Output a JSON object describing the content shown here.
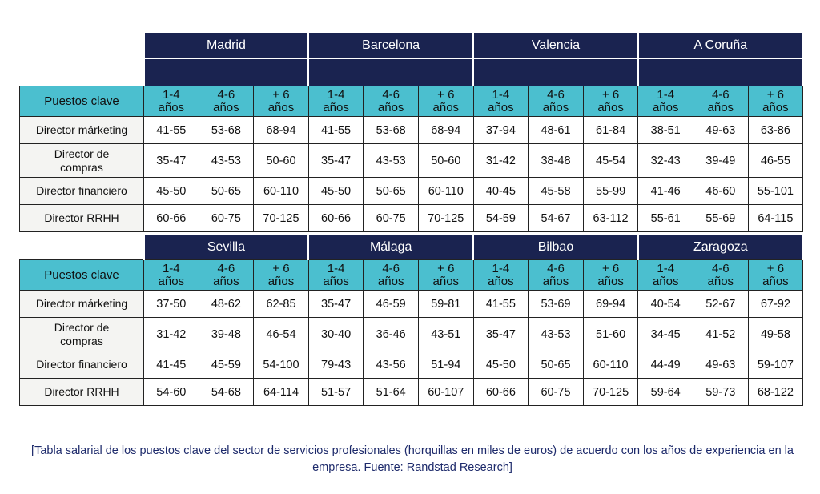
{
  "corner_label": "Puestos clave",
  "exp_headers": [
    "1-4\naños",
    "4-6\naños",
    "+ 6\naños"
  ],
  "roles": [
    "Director márketing",
    "Director de\ncompras",
    "Director financiero",
    "Director RRHH"
  ],
  "table1": {
    "cities": [
      "Madrid",
      "Barcelona",
      "Valencia",
      "A Coruña"
    ],
    "rows": [
      [
        "41-55",
        "53-68",
        "68-94",
        "41-55",
        "53-68",
        "68-94",
        "37-94",
        "48-61",
        "61-84",
        "38-51",
        "49-63",
        "63-86"
      ],
      [
        "35-47",
        "43-53",
        "50-60",
        "35-47",
        "43-53",
        "50-60",
        "31-42",
        "38-48",
        "45-54",
        "32-43",
        "39-49",
        "46-55"
      ],
      [
        "45-50",
        "50-65",
        "60-110",
        "45-50",
        "50-65",
        "60-110",
        "40-45",
        "45-58",
        "55-99",
        "41-46",
        "46-60",
        "55-101"
      ],
      [
        "60-66",
        "60-75",
        "70-125",
        "60-66",
        "60-75",
        "70-125",
        "54-59",
        "54-67",
        "63-112",
        "55-61",
        "55-69",
        "64-115"
      ]
    ]
  },
  "table2": {
    "cities": [
      "Sevilla",
      "Málaga",
      "Bilbao",
      "Zaragoza"
    ],
    "rows": [
      [
        "37-50",
        "48-62",
        "62-85",
        "35-47",
        "46-59",
        "59-81",
        "41-55",
        "53-69",
        "69-94",
        "40-54",
        "52-67",
        "67-92"
      ],
      [
        "31-42",
        "39-48",
        "46-54",
        "30-40",
        "36-46",
        "43-51",
        "35-47",
        "43-53",
        "51-60",
        "34-45",
        "41-52",
        "49-58"
      ],
      [
        "41-45",
        "45-59",
        "54-100",
        "79-43",
        "43-56",
        "51-94",
        "45-50",
        "50-65",
        "60-110",
        "44-49",
        "49-63",
        "59-107"
      ],
      [
        "54-60",
        "54-68",
        "64-114",
        "51-57",
        "51-64",
        "60-107",
        "60-66",
        "60-75",
        "70-125",
        "59-64",
        "59-73",
        "68-122"
      ]
    ]
  },
  "caption": "[Tabla salarial de los puestos clave del sector de servicios profesionales (horquillas en miles de euros) de acuerdo con los años de experiencia en la empresa. Fuente: Randstad Research]"
}
